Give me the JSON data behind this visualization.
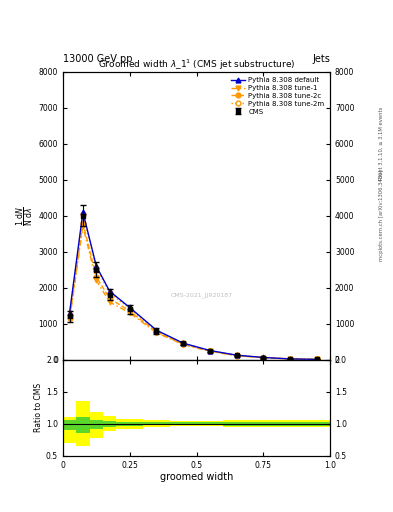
{
  "title": "Groomed width $\\lambda\\_1^1$ (CMS jet substructure)",
  "top_label_left": "13000 GeV pp",
  "top_label_right": "Jets",
  "xlabel": "groomed width",
  "ylabel_main": "$\\frac{1}{\\mathrm{N}} \\frac{\\mathrm{d}N}{\\mathrm{d}\\lambda}$",
  "ylabel_ratio": "Ratio to CMS",
  "watermark": "CMS-2021_JJ920187",
  "right_label_top": "Rivet 3.1.10, ≥ 3.1M events",
  "right_label_bot": "mcplots.cern.ch [arXiv:1306.3436]",
  "x": [
    0.025,
    0.075,
    0.125,
    0.175,
    0.25,
    0.35,
    0.45,
    0.55,
    0.65,
    0.75,
    0.85,
    0.95
  ],
  "cms_y": [
    1200,
    4000,
    2500,
    1800,
    1400,
    800,
    450,
    250,
    120,
    60,
    20,
    8
  ],
  "cms_err": [
    150,
    300,
    200,
    150,
    120,
    80,
    50,
    30,
    15,
    8,
    4,
    2
  ],
  "pythia_default_y": [
    1300,
    4100,
    2600,
    1900,
    1450,
    820,
    460,
    255,
    125,
    62,
    22,
    9
  ],
  "pythia_tune1_y": [
    1100,
    3700,
    2200,
    1600,
    1300,
    750,
    420,
    230,
    110,
    55,
    19,
    7
  ],
  "pythia_tune2c_y": [
    1150,
    3800,
    2300,
    1700,
    1350,
    770,
    435,
    240,
    115,
    58,
    20,
    8
  ],
  "pythia_tune2m_y": [
    1250,
    4050,
    2550,
    1850,
    1420,
    800,
    450,
    250,
    120,
    60,
    21,
    8
  ],
  "ylim_main": [
    0,
    8000
  ],
  "yticks_main": [
    0,
    1000,
    2000,
    3000,
    4000,
    5000,
    6000,
    7000,
    8000
  ],
  "xlim": [
    0,
    1
  ],
  "xticks": [
    0,
    0.25,
    0.5,
    0.75,
    1.0
  ],
  "ylim_ratio": [
    0.5,
    2.0
  ],
  "yticks_ratio": [
    0.5,
    1.0,
    1.5,
    2.0
  ],
  "color_cms": "#000000",
  "color_default": "#0000cc",
  "color_tune1": "#ff9900",
  "color_tune2c": "#ff9900",
  "color_tune2m": "#ff9900",
  "color_band_green": "#33cc33",
  "color_band_yellow": "#ffff00",
  "band_yellow_lo": [
    0.7,
    0.65,
    0.78,
    0.88,
    0.92,
    0.95,
    0.96,
    0.96,
    0.95,
    0.95,
    0.95,
    0.95
  ],
  "band_yellow_hi": [
    1.1,
    1.35,
    1.18,
    1.12,
    1.08,
    1.05,
    1.04,
    1.04,
    1.05,
    1.05,
    1.05,
    1.05
  ],
  "band_green_lo": [
    0.9,
    0.85,
    0.92,
    0.95,
    0.97,
    0.98,
    0.98,
    0.98,
    0.97,
    0.97,
    0.97,
    0.97
  ],
  "band_green_hi": [
    1.05,
    1.1,
    1.05,
    1.04,
    1.03,
    1.02,
    1.02,
    1.02,
    1.03,
    1.03,
    1.03,
    1.03
  ],
  "x_bin_edges": [
    0.0,
    0.05,
    0.1,
    0.15,
    0.2,
    0.3,
    0.4,
    0.5,
    0.6,
    0.7,
    0.8,
    0.9,
    1.0
  ]
}
